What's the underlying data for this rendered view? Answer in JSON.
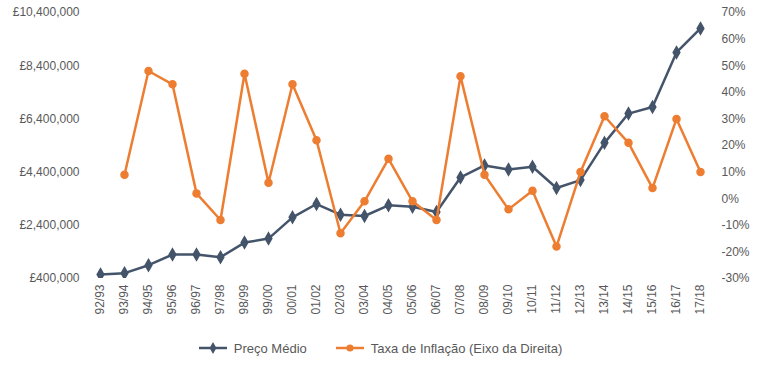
{
  "chart_data": {
    "type": "line",
    "categories": [
      "92/93",
      "93/94",
      "94/95",
      "95/96",
      "96/97",
      "97/98",
      "98/99",
      "99/00",
      "00/01",
      "01/02",
      "02/03",
      "03/04",
      "04/05",
      "05/06",
      "06/07",
      "07/08",
      "08/09",
      "09/10",
      "10/11",
      "11/12",
      "12/13",
      "13/14",
      "14/15",
      "15/16",
      "16/17",
      "17/18"
    ],
    "series": [
      {
        "name": "Preço Médio",
        "color": "#44546a",
        "marker": "diamond",
        "values": [
          550000,
          600000,
          900000,
          1300000,
          1300000,
          1200000,
          1750000,
          1900000,
          2700000,
          3200000,
          2800000,
          2750000,
          3150000,
          3100000,
          2900000,
          4200000,
          4650000,
          4500000,
          4600000,
          3800000,
          4100000,
          5500000,
          6600000,
          6850000,
          8900000,
          9800000
        ]
      },
      {
        "name": "Taxa de Inflação (Eixo da Direita)",
        "color": "#ed7d31",
        "marker": "circle",
        "axis": "y2",
        "values": [
          null,
          9,
          48,
          43,
          2,
          -8,
          47,
          6,
          43,
          22,
          -13,
          -1,
          15,
          -1,
          -8,
          46,
          9,
          -4,
          3,
          -18,
          10,
          31,
          21,
          4,
          30,
          10
        ]
      }
    ],
    "ylim": [
      400000,
      10400000
    ],
    "yticks": [
      {
        "value": 400000,
        "label": "£400,000"
      },
      {
        "value": 2400000,
        "label": "£2,400,000"
      },
      {
        "value": 4400000,
        "label": "£4,400,000"
      },
      {
        "value": 6400000,
        "label": "£6,400,000"
      },
      {
        "value": 8400000,
        "label": "£8,400,000"
      },
      {
        "value": 10400000,
        "label": "£10,400,000"
      }
    ],
    "y2lim": [
      -30,
      70
    ],
    "y2ticks": [
      {
        "value": -30,
        "label": "-30%"
      },
      {
        "value": -20,
        "label": "-20%"
      },
      {
        "value": -10,
        "label": "-10%"
      },
      {
        "value": 0,
        "label": "0%"
      },
      {
        "value": 10,
        "label": "10%"
      },
      {
        "value": 20,
        "label": "20%"
      },
      {
        "value": 30,
        "label": "30%"
      },
      {
        "value": 40,
        "label": "40%"
      },
      {
        "value": 50,
        "label": "50%"
      },
      {
        "value": 60,
        "label": "60%"
      },
      {
        "value": 70,
        "label": "70%"
      }
    ],
    "grid": false,
    "legend": "bottom"
  }
}
